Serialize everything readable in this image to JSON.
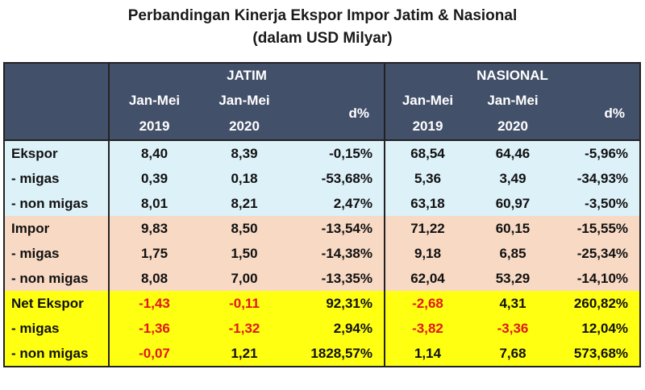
{
  "chart_data": {
    "type": "table",
    "title": "Perbandingan Kinerja Ekspor Impor Jatim & Nasional",
    "subtitle": "(dalam USD Milyar)",
    "groups": [
      "JATIM",
      "NASIONAL"
    ],
    "columns": [
      {
        "line1": "Jan-Mei",
        "line2": "2019"
      },
      {
        "line1": "Jan-Mei",
        "line2": "2020"
      },
      {
        "line1": "d%",
        "line2": ""
      },
      {
        "line1": "Jan-Mei",
        "line2": "2019"
      },
      {
        "line1": "Jan-Mei",
        "line2": "2020"
      },
      {
        "line1": "d%",
        "line2": ""
      }
    ],
    "rows": [
      {
        "label": "Ekspor",
        "section": "ekspor",
        "cells": [
          "8,40",
          "8,39",
          "-0,15%",
          "68,54",
          "64,46",
          "-5,96%"
        ]
      },
      {
        "label": "- migas",
        "section": "ekspor",
        "cells": [
          "0,39",
          "0,18",
          "-53,68%",
          "5,36",
          "3,49",
          "-34,93%"
        ]
      },
      {
        "label": "- non migas",
        "section": "ekspor",
        "cells": [
          "8,01",
          "8,21",
          "2,47%",
          "63,18",
          "60,97",
          "-3,50%"
        ]
      },
      {
        "label": "Impor",
        "section": "impor",
        "cells": [
          "9,83",
          "8,50",
          "-13,54%",
          "71,22",
          "60,15",
          "-15,55%"
        ]
      },
      {
        "label": "- migas",
        "section": "impor",
        "cells": [
          "1,75",
          "1,50",
          "-14,38%",
          "9,18",
          "6,85",
          "-25,34%"
        ]
      },
      {
        "label": "- non migas",
        "section": "impor",
        "cells": [
          "8,08",
          "7,00",
          "-13,35%",
          "62,04",
          "53,29",
          "-14,10%"
        ]
      },
      {
        "label": "Net Ekspor",
        "section": "net",
        "cells": [
          "-1,43",
          "-0,11",
          "92,31%",
          "-2,68",
          "4,31",
          "260,82%"
        ]
      },
      {
        "label": "- migas",
        "section": "net",
        "cells": [
          "-1,36",
          "-1,32",
          "2,94%",
          "-3,82",
          "-3,36",
          "12,04%"
        ]
      },
      {
        "label": "- non migas",
        "section": "net",
        "cells": [
          "-0,07",
          "1,21",
          "1828,57%",
          "1,14",
          "7,68",
          "573,68%"
        ]
      }
    ]
  },
  "colors": {
    "header_bg": "#43506a",
    "ekspor_bg": "#ddf1f9",
    "impor_bg": "#f8d9c4",
    "net_bg": "#ffff11",
    "negative_value": "#e01818"
  }
}
